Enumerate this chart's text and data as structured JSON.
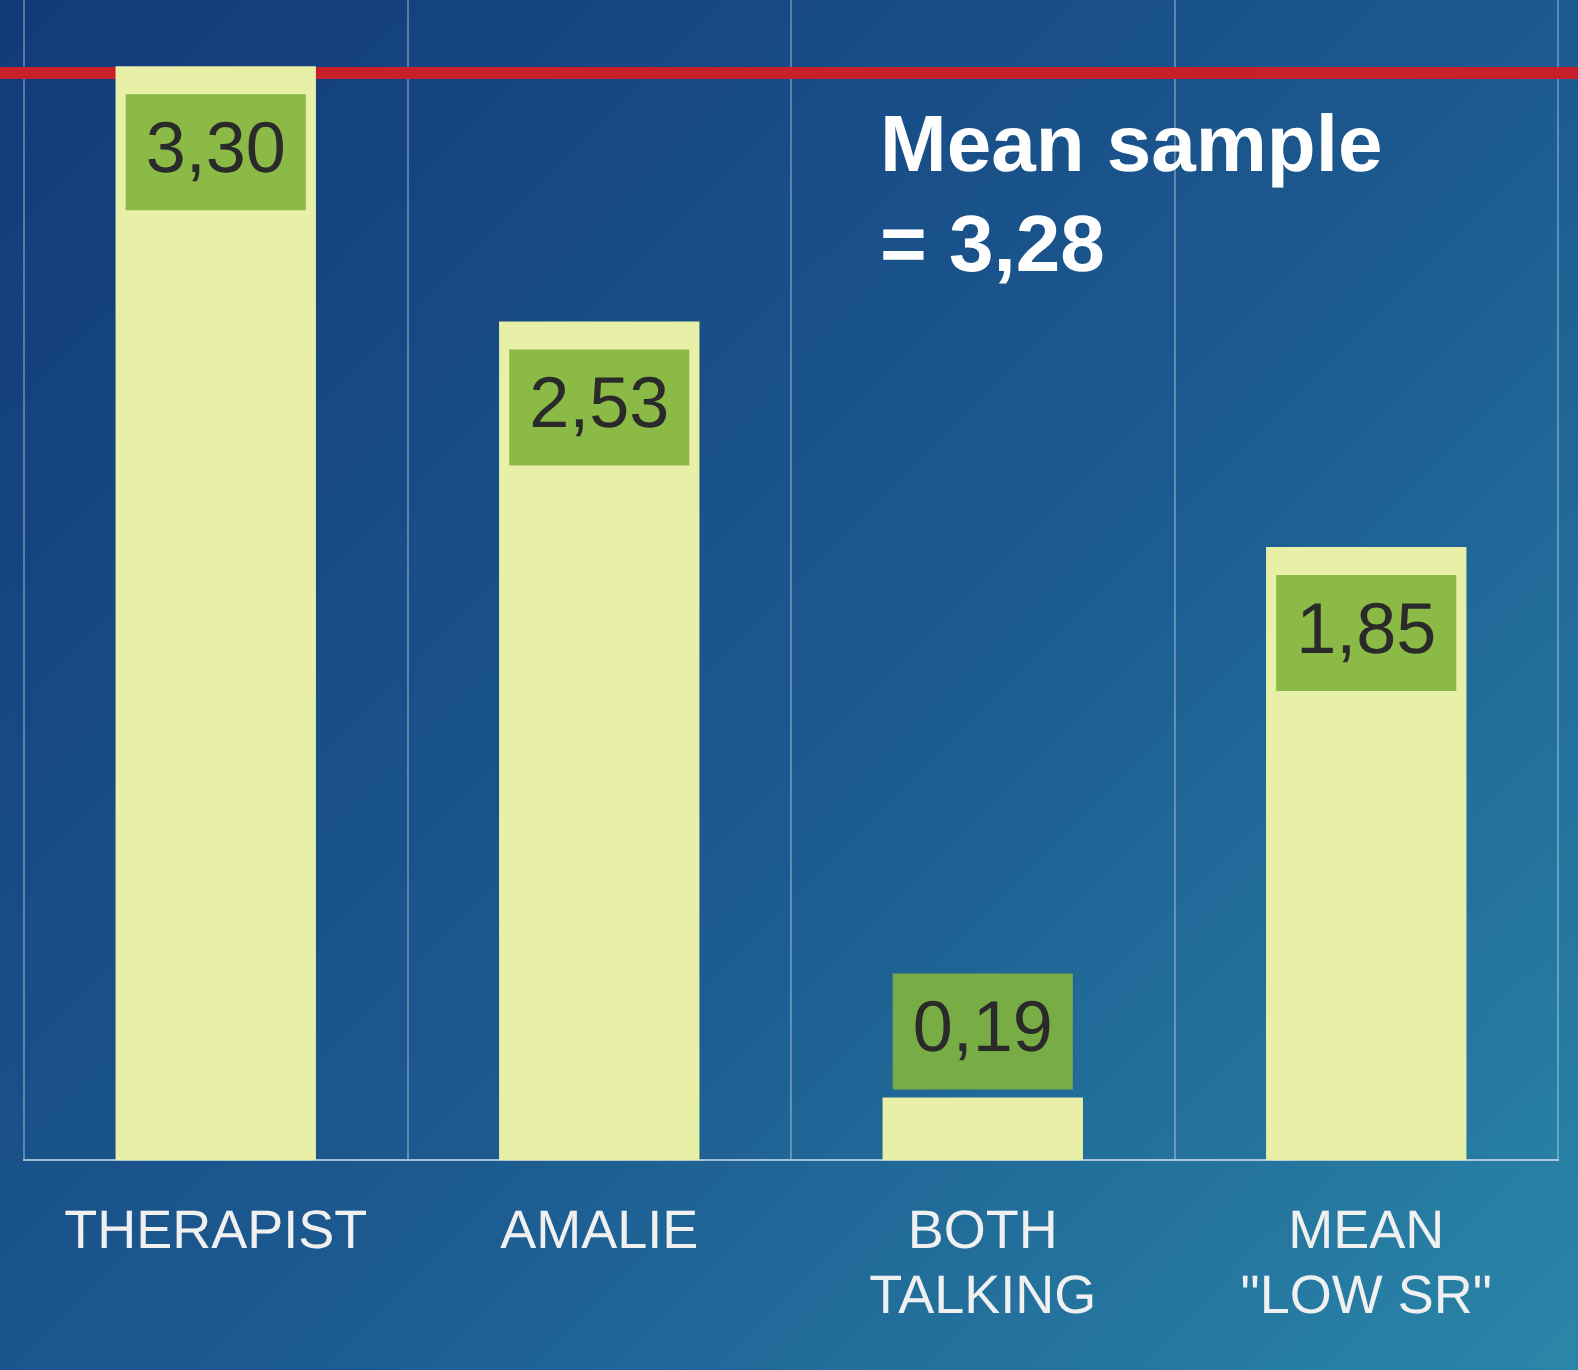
{
  "chart_data": {
    "type": "bar",
    "categories": [
      "THERAPIST",
      "AMALIE",
      "BOTH TALKING",
      "MEAN \"LOW SR\""
    ],
    "values": [
      3.3,
      2.53,
      0.19,
      1.85
    ],
    "value_labels": [
      "3,30",
      "2,53",
      "0,19",
      "1,85"
    ],
    "color": "#e8f0a8",
    "ref_lines": [
      {
        "axis": "y",
        "value": 3.28,
        "label": "Mean sample = 3,28",
        "color": "#c8202a"
      }
    ],
    "grid": "x",
    "legend": false
  }
}
